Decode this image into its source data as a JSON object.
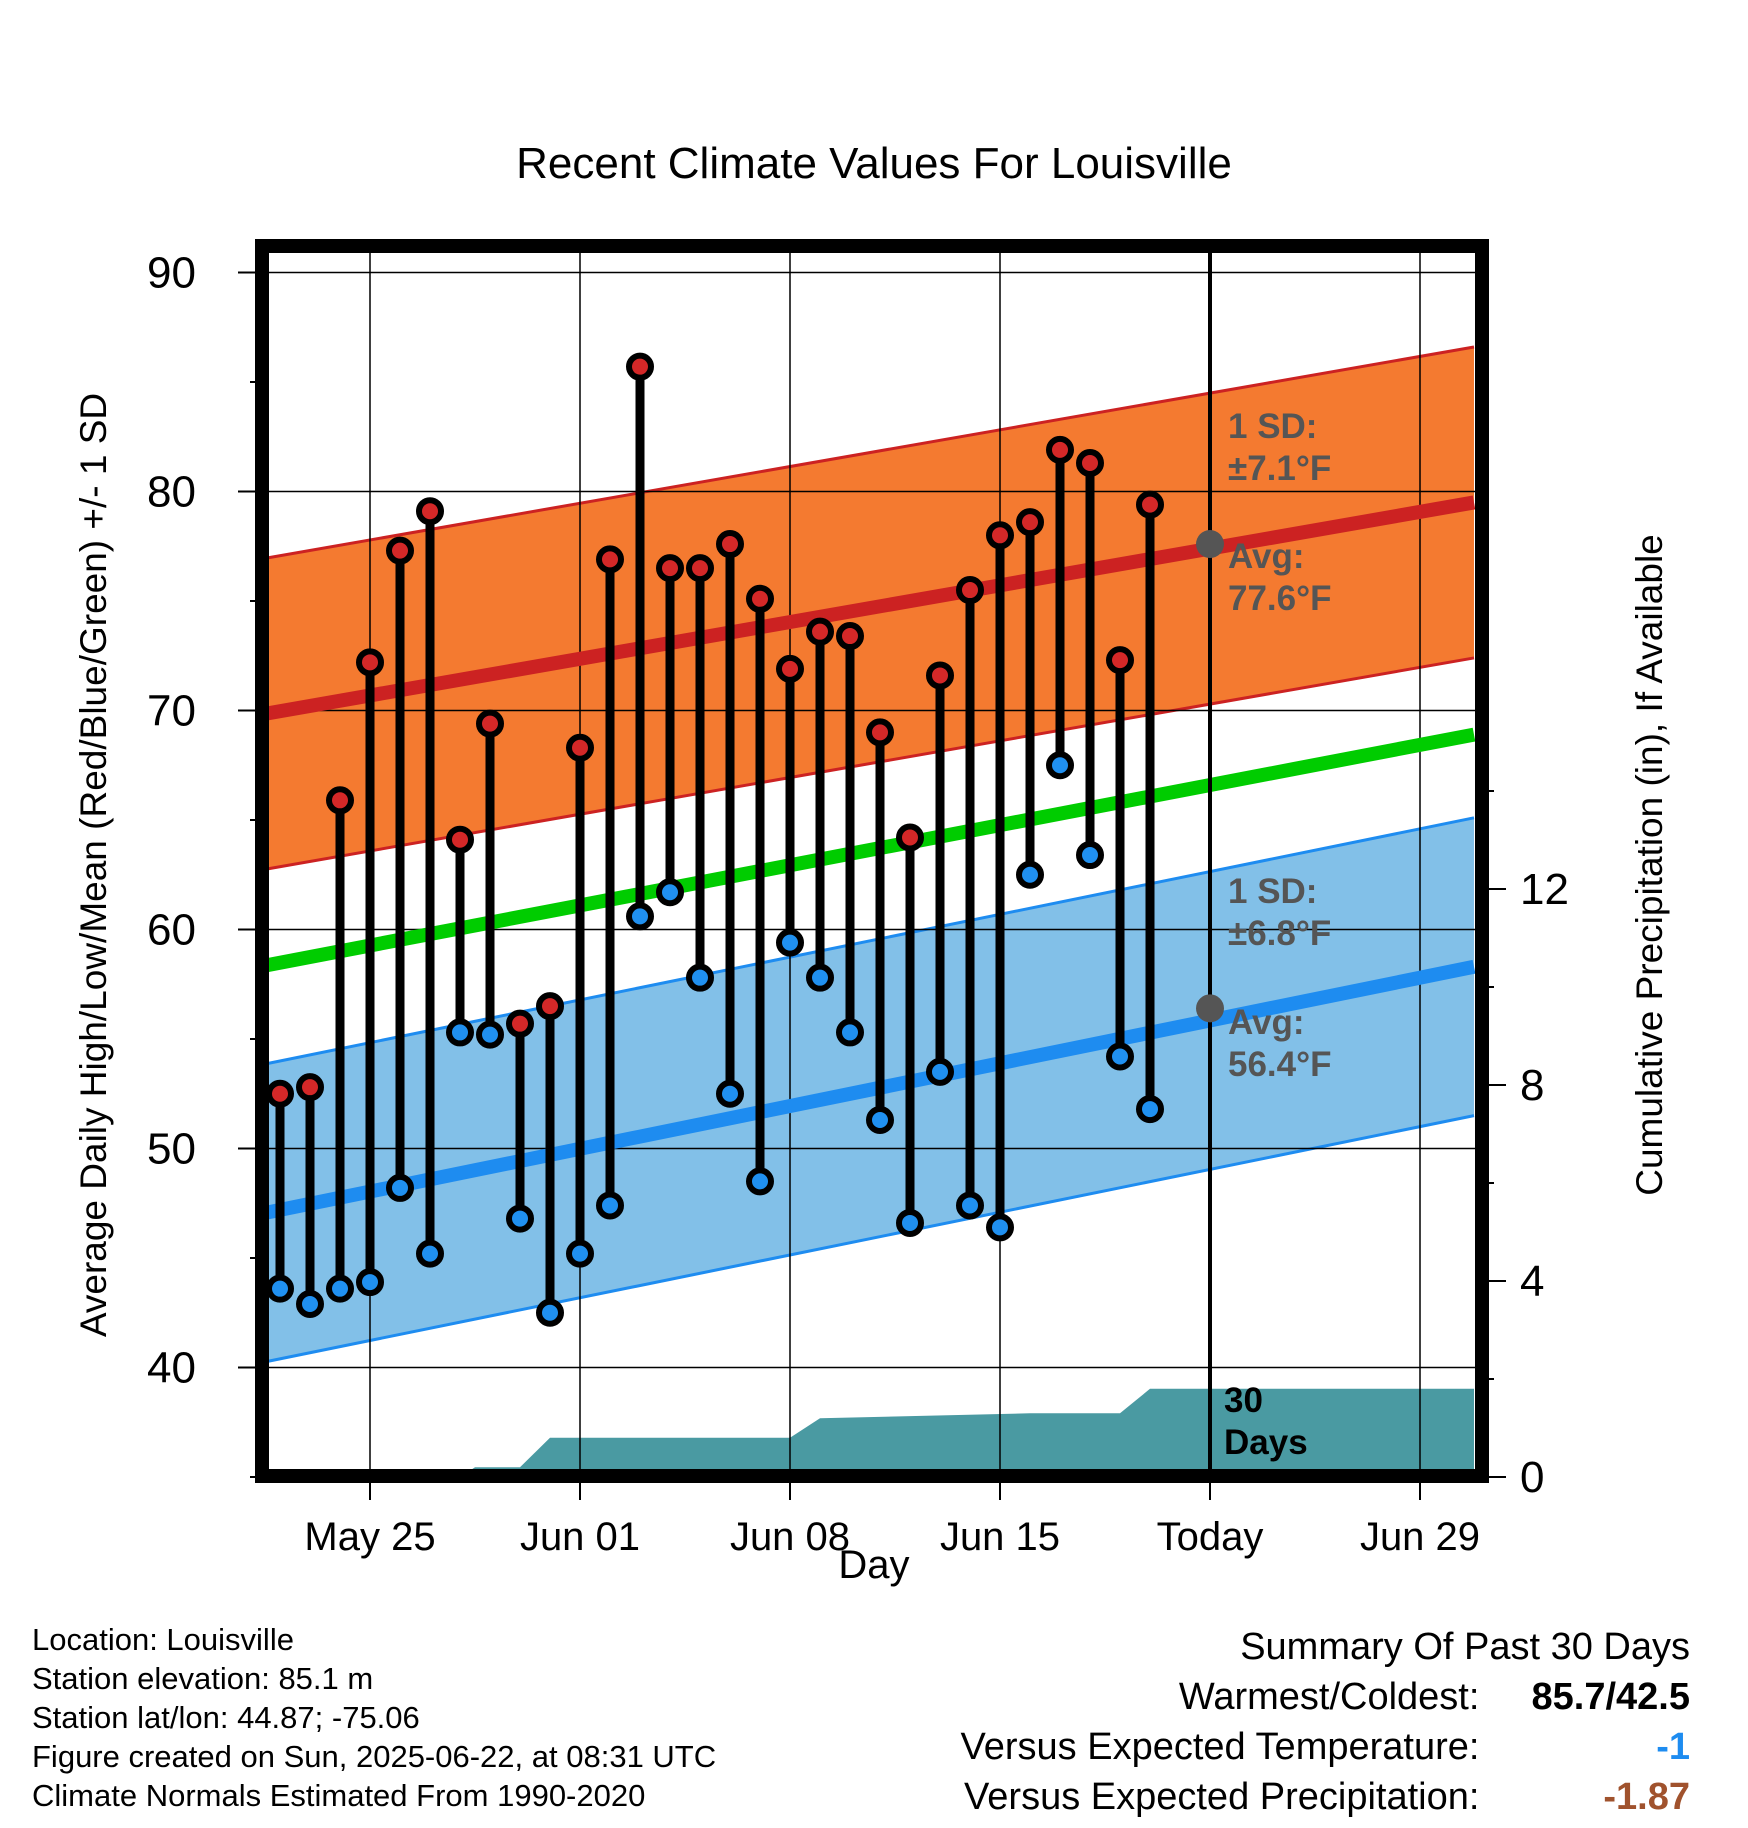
{
  "chart_data": {
    "type": "line",
    "title": "Recent Climate Values For Louisville",
    "xlabel": "Day",
    "ylabel": "Average Daily High/Low/Mean (Red/Blue/Green) +/- 1 SD",
    "y2label": "Cumulative Precipitation (in), If Available",
    "ylim": [
      35,
      90
    ],
    "y2lim": [
      0,
      27
    ],
    "y_ticks": [
      "40",
      "50",
      "60",
      "70",
      "80",
      "90"
    ],
    "y2_ticks": [
      "0",
      "4",
      "8",
      "12"
    ],
    "x_ticks": [
      "May 25",
      "Jun 01",
      "Jun 08",
      "Jun 15",
      "Today",
      "Jun 29"
    ],
    "x_tick_days": [
      3,
      10,
      17,
      24,
      31,
      38
    ],
    "xlim": [
      -0.7,
      39.8
    ],
    "today_day": 31,
    "grid": true,
    "days": [
      0,
      1,
      2,
      3,
      4,
      5,
      6,
      7,
      8,
      9,
      10,
      11,
      12,
      13,
      14,
      15,
      16,
      17,
      18,
      19,
      20,
      21,
      22,
      23,
      24,
      25,
      26,
      27,
      28,
      29
    ],
    "highs": [
      52.5,
      52.8,
      65.9,
      72.2,
      77.3,
      79.1,
      64.1,
      69.4,
      55.7,
      56.5,
      68.3,
      76.9,
      85.7,
      76.5,
      76.5,
      77.6,
      75.1,
      71.9,
      73.6,
      73.4,
      69.0,
      64.2,
      71.6,
      75.5,
      78.0,
      78.6,
      81.9,
      81.3,
      72.3,
      79.4
    ],
    "lows": [
      43.6,
      42.9,
      43.6,
      43.9,
      48.2,
      45.2,
      55.3,
      55.2,
      46.8,
      42.5,
      45.2,
      47.4,
      60.6,
      61.7,
      57.8,
      52.5,
      48.5,
      59.4,
      57.8,
      55.3,
      51.3,
      46.6,
      53.5,
      47.4,
      46.4,
      62.5,
      67.5,
      63.4,
      54.2,
      51.8
    ],
    "normal_high": {
      "x": [
        -0.7,
        39.8
      ],
      "y": [
        69.8,
        79.5
      ]
    },
    "normal_low": {
      "x": [
        -0.7,
        39.8
      ],
      "y": [
        47.0,
        58.3
      ]
    },
    "normal_mean": {
      "x": [
        -0.7,
        39.8
      ],
      "y": [
        58.3,
        68.9
      ]
    },
    "high_sd": 7.1,
    "low_sd": 6.8,
    "today_high_avg": 77.6,
    "today_low_avg": 56.4,
    "precip_cumulative": [
      [
        -0.7,
        0
      ],
      [
        6,
        0
      ],
      [
        6.5,
        0.2
      ],
      [
        8,
        0.2
      ],
      [
        9,
        0.8
      ],
      [
        17,
        0.8
      ],
      [
        18,
        1.2
      ],
      [
        25,
        1.3
      ],
      [
        28,
        1.3
      ],
      [
        29,
        1.8
      ],
      [
        39.8,
        1.8
      ]
    ],
    "annotations": {
      "high_sd_label": "1 SD:",
      "high_sd_value": "±7.1°F",
      "high_avg_label": "Avg:",
      "high_avg_value": "77.6°F",
      "low_sd_label": "1 SD:",
      "low_sd_value": "±6.8°F",
      "low_avg_label": "Avg:",
      "low_avg_value": "56.4°F",
      "days_line1": "30",
      "days_line2": "Days"
    },
    "colors": {
      "high_band": "#f47a30",
      "high_line": "#cc2222",
      "low_band": "#82c0e8",
      "low_line": "#1e8cf0",
      "mean_line": "#00cc00",
      "precip": "#4a9aa2",
      "high_dot": "#d42828",
      "low_dot": "#2090f0",
      "today_dot": "#555555",
      "annotation": "#555555"
    }
  },
  "footer": {
    "location": "Location: Louisville",
    "elevation": "Station elevation: 85.1 m",
    "latlon": "Station lat/lon: 44.87; -75.06",
    "created": "Figure created on Sun, 2025-06-22, at 08:31 UTC",
    "normals": "Climate Normals Estimated From 1990-2020"
  },
  "summary": {
    "title": "Summary Of Past 30 Days",
    "warmest_label": "Warmest/Coldest:",
    "warmest_value": "85.7/42.5",
    "temp_label": "Versus Expected Temperature:",
    "temp_value": "-1",
    "temp_color": "#1e8cf0",
    "precip_label": "Versus Expected Precipitation:",
    "precip_value": "-1.87",
    "precip_color": "#a0522d"
  }
}
